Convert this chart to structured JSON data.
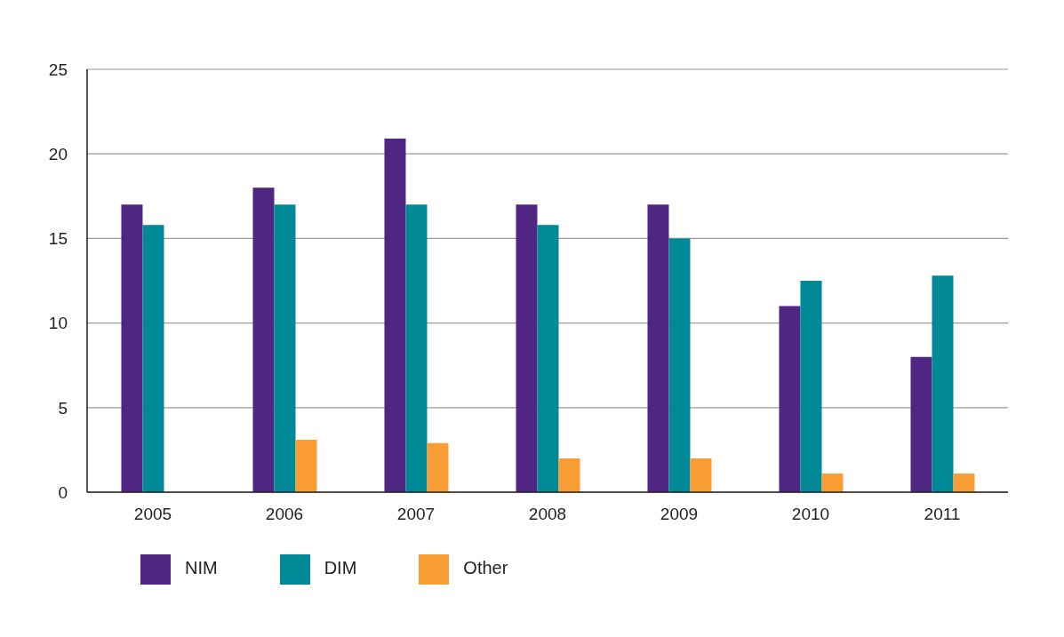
{
  "chart_data": {
    "type": "bar",
    "categories": [
      "2005",
      "2006",
      "2007",
      "2008",
      "2009",
      "2010",
      "2011"
    ],
    "series": [
      {
        "name": "NIM",
        "color": "#502683",
        "values": [
          17,
          18,
          20.9,
          17,
          17,
          11,
          8
        ]
      },
      {
        "name": "DIM",
        "color": "#008996",
        "values": [
          15.8,
          17,
          17,
          15.8,
          15,
          12.5,
          12.8
        ]
      },
      {
        "name": "Other",
        "color": "#f89c33",
        "values": [
          null,
          3.1,
          2.9,
          2,
          2,
          1.1,
          1.1
        ]
      }
    ],
    "ylim": [
      0,
      25
    ],
    "yticks": [
      0,
      5,
      10,
      15,
      20,
      25
    ],
    "grid": "y",
    "legend": "bottom left"
  }
}
